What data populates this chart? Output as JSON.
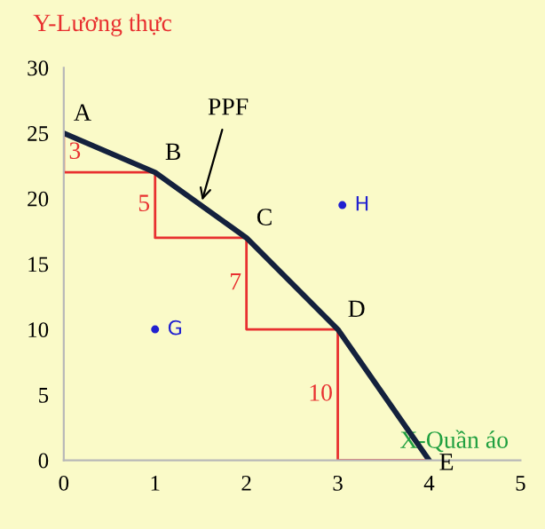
{
  "chart_data": {
    "type": "line",
    "xlabel": "X-Quần áo",
    "ylabel": "Y-Lương thực",
    "xlim": [
      0,
      5
    ],
    "ylim": [
      0,
      30
    ],
    "xticks": [
      0,
      1,
      2,
      3,
      4,
      5
    ],
    "yticks": [
      0,
      5,
      10,
      15,
      20,
      25,
      30
    ],
    "grid": false,
    "legend": false,
    "series": [
      {
        "type": "step",
        "color": "#e83030",
        "x": [
          0,
          1,
          2,
          3,
          4
        ],
        "values": [
          25,
          22,
          17,
          10,
          0
        ]
      },
      {
        "color": "#14213d",
        "x": [
          0,
          1,
          2,
          3,
          4
        ],
        "values": [
          25,
          22,
          17,
          10,
          0
        ],
        "value_labels": [
          "A",
          "B",
          "C",
          "D",
          "E"
        ]
      },
      {
        "type": "scatter",
        "color": "#2020d0",
        "x": [
          3.05,
          1
        ],
        "values": [
          19.5,
          10
        ],
        "value_labels": [
          "H",
          "G"
        ]
      }
    ],
    "annotations": [
      {
        "text": "PPF",
        "x": 1.5,
        "y": 19.5
      },
      {
        "text": "3",
        "x": 0,
        "y": 23.5
      },
      {
        "text": "5",
        "x": 1,
        "y": 19.5
      },
      {
        "text": "7",
        "x": 2,
        "y": 13.5
      },
      {
        "text": "10",
        "x": 3,
        "y": 5
      }
    ]
  }
}
